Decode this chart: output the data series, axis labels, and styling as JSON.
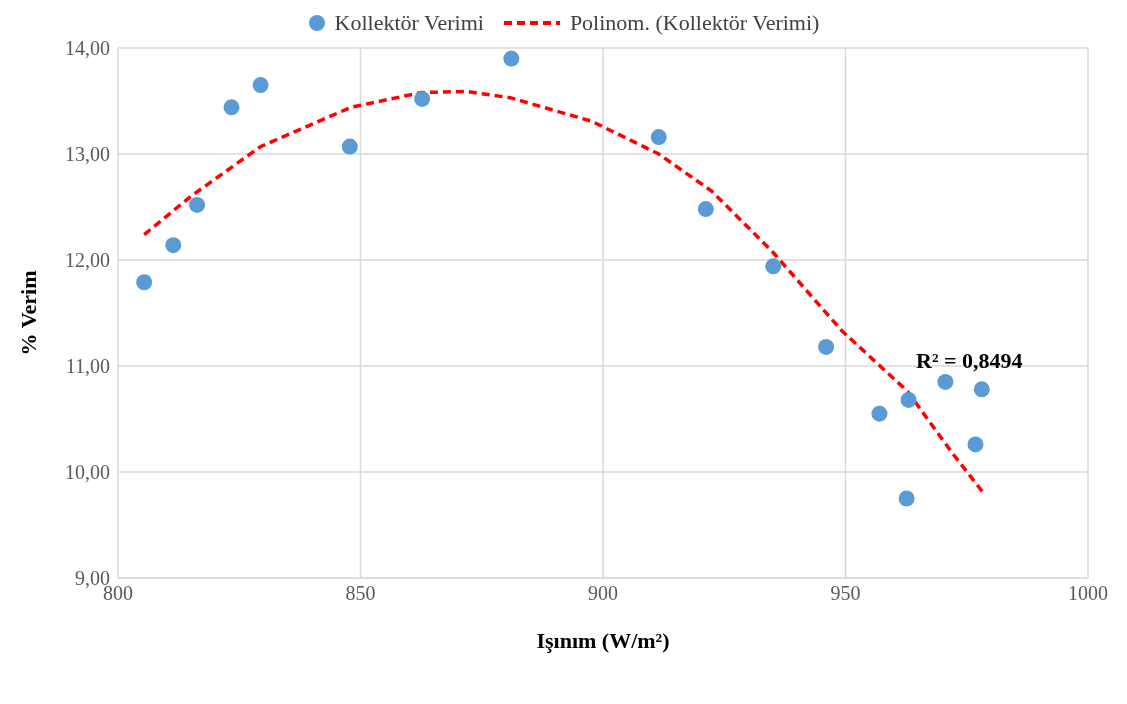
{
  "chart_data": {
    "type": "scatter",
    "xlabel": "Işınım (W/m²)",
    "ylabel": "% Verim",
    "xlim": [
      800,
      1000
    ],
    "xticks": [
      800,
      850,
      900,
      950,
      1000
    ],
    "ylim": [
      9,
      14
    ],
    "yticks": [
      {
        "value": 9,
        "label": "9,00"
      },
      {
        "value": 10,
        "label": "10,00"
      },
      {
        "value": 11,
        "label": "11,00"
      },
      {
        "value": 12,
        "label": "12,00"
      },
      {
        "value": 13,
        "label": "13,00"
      },
      {
        "value": 14,
        "label": "14,00"
      }
    ],
    "grid": true,
    "legend": "top",
    "series": [
      {
        "name": "Kollektör Verimi",
        "color": "#5b9bd5",
        "marker": "circle",
        "x": [
          805.4,
          811.4,
          816.3,
          823.4,
          829.4,
          847.8,
          862.7,
          881.1,
          911.5,
          921.2,
          935.1,
          946.0,
          957.0,
          963.0,
          962.6,
          970.6,
          978.1,
          976.8
        ],
        "values": [
          11.79,
          12.14,
          12.52,
          13.44,
          13.65,
          13.07,
          13.52,
          13.9,
          13.16,
          12.48,
          11.94,
          11.18,
          10.55,
          10.68,
          9.75,
          10.85,
          10.78,
          10.26
        ]
      },
      {
        "name": "Polinom. (Kollektör Verimi)",
        "type": "line",
        "color": "#ff0000",
        "line_style": "dashed",
        "marker": "none",
        "x": [
          805.4,
          815,
          829.4,
          848,
          862.5,
          871.8,
          881,
          897.6,
          911.5,
          922.4,
          934.9,
          949.3,
          962.8,
          972,
          978.3
        ],
        "values": [
          12.24,
          12.6,
          13.07,
          13.44,
          13.58,
          13.59,
          13.53,
          13.31,
          13.0,
          12.65,
          12.08,
          11.33,
          10.76,
          10.18,
          9.81
        ]
      }
    ],
    "annotations": [
      "R² = 0,8494"
    ]
  }
}
